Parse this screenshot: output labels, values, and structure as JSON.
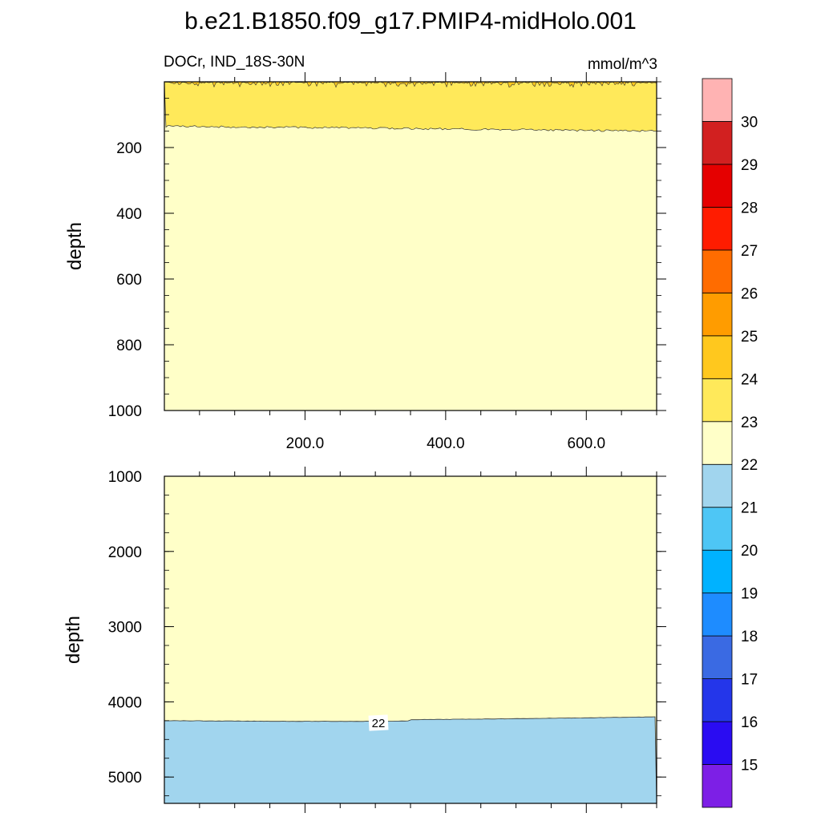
{
  "chart_data": {
    "type": "contour",
    "title": "b.e21.B1850.f09_g17.PMIP4-midHolo.001",
    "variable_label": "DOCr, IND_18S-30N",
    "units": "mmol/m^3",
    "colorbar": {
      "levels": [
        15,
        16,
        17,
        18,
        19,
        20,
        21,
        22,
        23,
        24,
        25,
        26,
        27,
        28,
        29,
        30
      ],
      "colors": [
        "#7d1fe6",
        "#2a0cf2",
        "#2436ea",
        "#3a6ae3",
        "#1e8cff",
        "#00b2ff",
        "#4ec6f5",
        "#a1d5ee",
        "#ffffc8",
        "#ffe95a",
        "#ffc81e",
        "#ff9c00",
        "#ff6c00",
        "#ff1c00",
        "#e50000",
        "#d22020",
        "#ffb3b3"
      ],
      "label_values": [
        "15",
        "16",
        "17",
        "18",
        "19",
        "20",
        "21",
        "22",
        "23",
        "24",
        "25",
        "26",
        "27",
        "28",
        "29",
        "30"
      ]
    },
    "x_axis": {
      "range": [
        0,
        700
      ],
      "tick_labels": [
        "200.0",
        "400.0",
        "600.0"
      ],
      "tick_values": [
        200,
        400,
        600
      ]
    },
    "panels": [
      {
        "name": "upper",
        "ylabel": "depth",
        "ylim": [
          0,
          1000
        ],
        "y_ticks": [
          200,
          400,
          600,
          800,
          1000
        ],
        "y_tick_labels": [
          "200",
          "400",
          "600",
          "800",
          "1000"
        ],
        "regions": [
          {
            "range": "23-24",
            "color": "#ffe95a",
            "depth_top": 0,
            "depth_bottom_start": 135,
            "depth_bottom_end": 150
          },
          {
            "range": "22-23",
            "color": "#ffffc8"
          }
        ]
      },
      {
        "name": "lower",
        "ylabel": "depth",
        "ylim": [
          1000,
          5350
        ],
        "y_ticks": [
          1000,
          2000,
          3000,
          4000,
          5000
        ],
        "y_tick_labels": [
          "1000",
          "2000",
          "3000",
          "4000",
          "5000"
        ],
        "regions": [
          {
            "range": "22-23",
            "color": "#ffffc8"
          },
          {
            "range": "21-22",
            "color": "#a1d5ee",
            "depth_top_start": 4250,
            "depth_top_end": 4200
          }
        ],
        "contour_labels": [
          {
            "text": "22",
            "x": 300,
            "depth": 4280
          }
        ]
      }
    ]
  }
}
